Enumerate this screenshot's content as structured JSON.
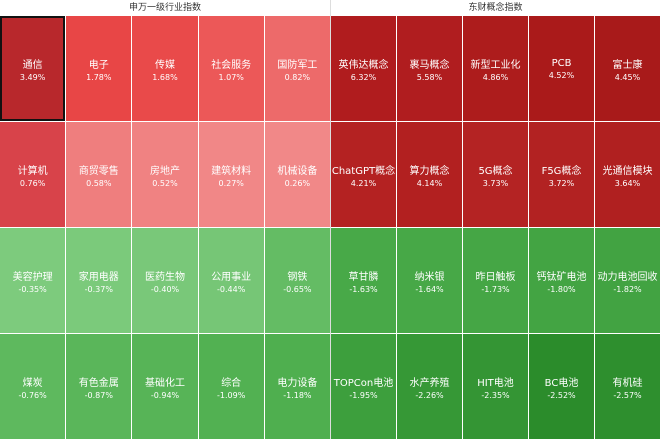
{
  "panels": [
    {
      "title": "申万一级行业指数",
      "cells": [
        {
          "name": "通信",
          "change": "3.49%",
          "color": "#b8282c"
        },
        {
          "name": "电子",
          "change": "1.78%",
          "color": "#e84646"
        },
        {
          "name": "传媒",
          "change": "1.68%",
          "color": "#e94a4a"
        },
        {
          "name": "社会服务",
          "change": "1.07%",
          "color": "#ec5858"
        },
        {
          "name": "国防军工",
          "change": "0.82%",
          "color": "#ed6a6a"
        },
        {
          "name": "计算机",
          "change": "0.76%",
          "color": "#d8434a"
        },
        {
          "name": "商贸零售",
          "change": "0.58%",
          "color": "#ef7e7e"
        },
        {
          "name": "房地产",
          "change": "0.52%",
          "color": "#f08282"
        },
        {
          "name": "建筑材料",
          "change": "0.27%",
          "color": "#f18787"
        },
        {
          "name": "机械设备",
          "change": "0.26%",
          "color": "#f18888"
        },
        {
          "name": "美容护理",
          "change": "-0.35%",
          "color": "#7dcb7d"
        },
        {
          "name": "家用电器",
          "change": "-0.37%",
          "color": "#7bca7b"
        },
        {
          "name": "医药生物",
          "change": "-0.40%",
          "color": "#79c879"
        },
        {
          "name": "公用事业",
          "change": "-0.44%",
          "color": "#76c676"
        },
        {
          "name": "钢铁",
          "change": "-0.65%",
          "color": "#64bc64"
        },
        {
          "name": "煤炭",
          "change": "-0.76%",
          "color": "#5eb95e"
        },
        {
          "name": "有色金属",
          "change": "-0.87%",
          "color": "#5ab65a"
        },
        {
          "name": "基础化工",
          "change": "-0.94%",
          "color": "#57b457"
        },
        {
          "name": "综合",
          "change": "-1.09%",
          "color": "#52b152"
        },
        {
          "name": "电力设备",
          "change": "-1.18%",
          "color": "#4faf4f"
        }
      ]
    },
    {
      "title": "东财概念指数",
      "cells": [
        {
          "name": "英伟达概念",
          "change": "6.32%",
          "color": "#b01c1e"
        },
        {
          "name": "裹马概念",
          "change": "5.58%",
          "color": "#b01d1f"
        },
        {
          "name": "新型工业化",
          "change": "4.86%",
          "color": "#ad1c1c"
        },
        {
          "name": "PCB",
          "change": "4.52%",
          "color": "#aa1a1a"
        },
        {
          "name": "富士康",
          "change": "4.45%",
          "color": "#a81a1a"
        },
        {
          "name": "ChatGPT概念",
          "change": "4.21%",
          "color": "#b42222"
        },
        {
          "name": "算力概念",
          "change": "4.14%",
          "color": "#b22020"
        },
        {
          "name": "5G概念",
          "change": "3.73%",
          "color": "#b42323"
        },
        {
          "name": "F5G概念",
          "change": "3.72%",
          "color": "#b22222"
        },
        {
          "name": "光通信模块",
          "change": "3.64%",
          "color": "#b02020"
        },
        {
          "name": "草甘膦",
          "change": "-1.63%",
          "color": "#48a948"
        },
        {
          "name": "纳米银",
          "change": "-1.64%",
          "color": "#47a847"
        },
        {
          "name": "昨日触板",
          "change": "-1.73%",
          "color": "#45a645"
        },
        {
          "name": "钙钛矿电池",
          "change": "-1.80%",
          "color": "#43a443"
        },
        {
          "name": "动力电池回收",
          "change": "-1.82%",
          "color": "#42a342"
        },
        {
          "name": "TOPCon电池",
          "change": "-1.95%",
          "color": "#3d9f3d"
        },
        {
          "name": "水产养殖",
          "change": "-2.26%",
          "color": "#369836"
        },
        {
          "name": "HIT电池",
          "change": "-2.35%",
          "color": "#349534"
        },
        {
          "name": "BC电池",
          "change": "-2.52%",
          "color": "#2b8c2b"
        },
        {
          "name": "有机硅",
          "change": "-2.57%",
          "color": "#2e8f2e"
        }
      ]
    }
  ]
}
